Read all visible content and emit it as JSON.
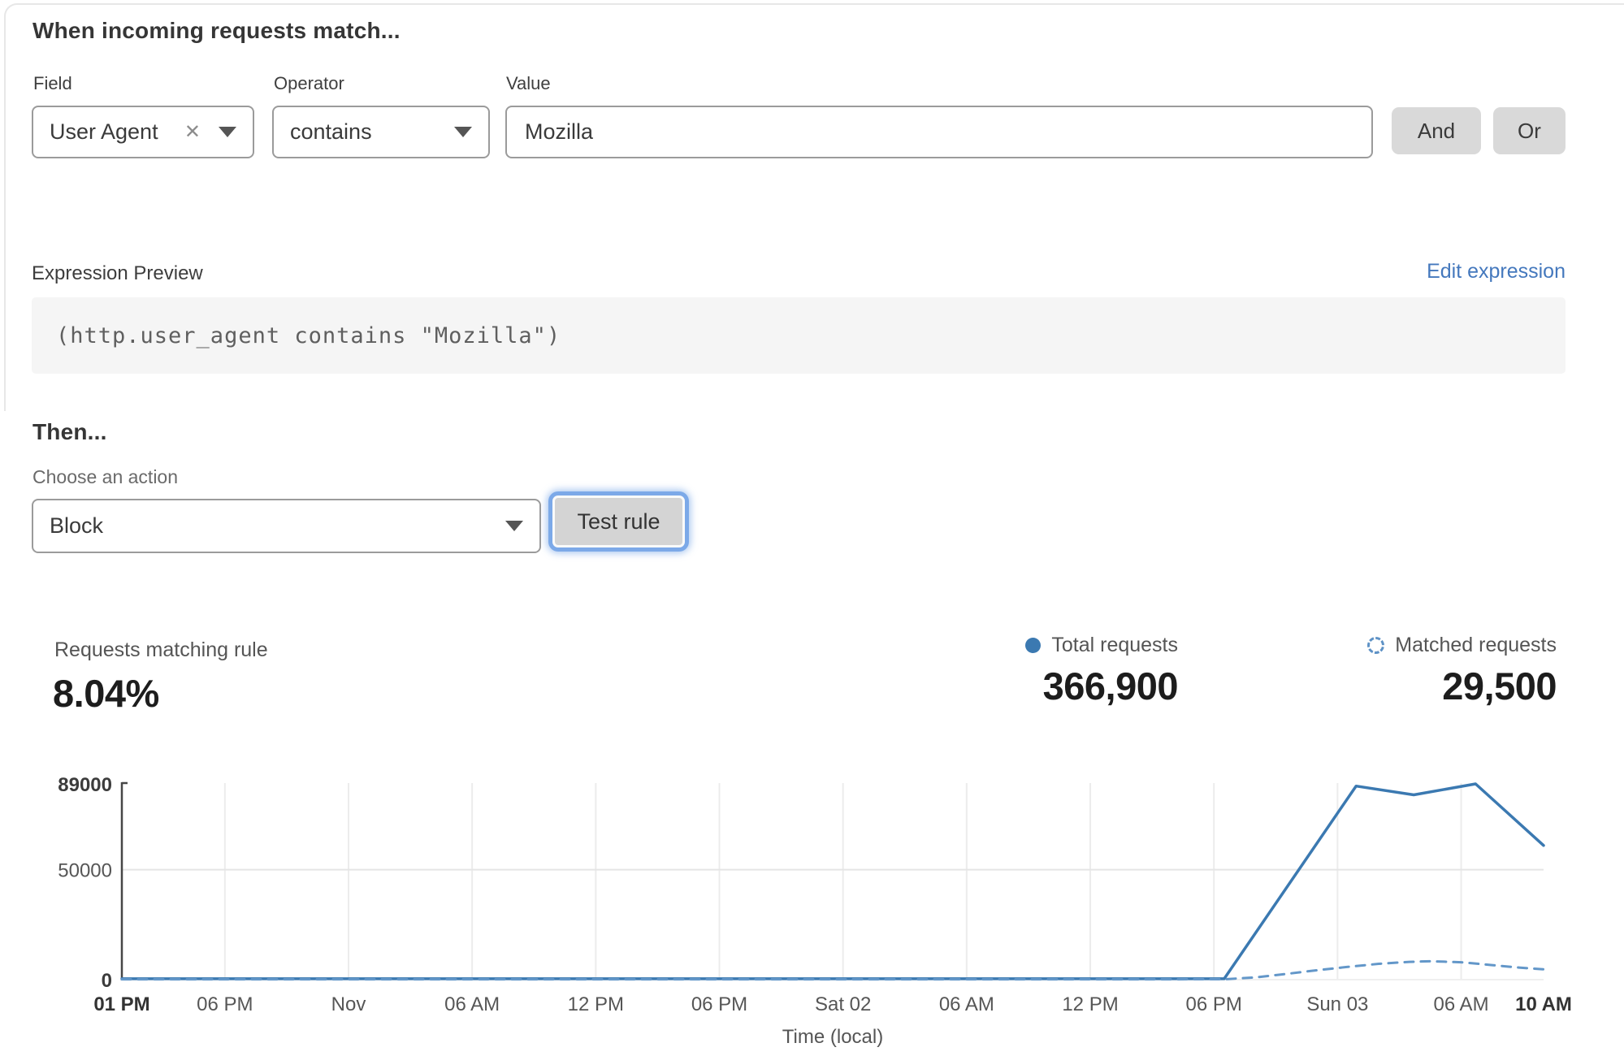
{
  "match": {
    "heading": "When incoming requests match...",
    "field_label": "Field",
    "operator_label": "Operator",
    "value_label": "Value",
    "field_value": "User Agent",
    "operator_value": "contains",
    "value_value": "Mozilla",
    "and_label": "And",
    "or_label": "Or"
  },
  "expression": {
    "label": "Expression Preview",
    "edit_link": "Edit expression",
    "code": "(http.user_agent contains \"Mozilla\")"
  },
  "then": {
    "heading": "Then...",
    "action_label": "Choose an action",
    "action_value": "Block",
    "test_button": "Test rule"
  },
  "stats": {
    "matching_label": "Requests matching rule",
    "matching_value": "8.04%",
    "total_label": "Total requests",
    "total_value": "366,900",
    "matched_label": "Matched requests",
    "matched_value": "29,500"
  },
  "colors": {
    "total_line": "#3b79b1",
    "matched_line": "#6397c9",
    "link_blue": "#4478bd",
    "focus_ring": "#7ca9e8",
    "button_gray": "#d9d9d9",
    "grid_gray": "#ececec"
  },
  "chart_data": {
    "type": "line",
    "title": "",
    "xlabel": "Time (local)",
    "ylabel": "",
    "ylim": [
      0,
      89000
    ],
    "grid": true,
    "legend_position": "top-right",
    "y_ticks": [
      {
        "value": 0,
        "label": "0",
        "bold": true
      },
      {
        "value": 50000,
        "label": "50000",
        "bold": false
      },
      {
        "value": 89000,
        "label": "89000",
        "bold": true
      }
    ],
    "x_span_hours": 69,
    "x_ticks": [
      {
        "h": 0,
        "label": "01 PM",
        "bold": true
      },
      {
        "h": 5,
        "label": "06 PM",
        "bold": false
      },
      {
        "h": 11,
        "label": "Nov",
        "bold": false
      },
      {
        "h": 17,
        "label": "06 AM",
        "bold": false
      },
      {
        "h": 23,
        "label": "12 PM",
        "bold": false
      },
      {
        "h": 29,
        "label": "06 PM",
        "bold": false
      },
      {
        "h": 35,
        "label": "Sat 02",
        "bold": false
      },
      {
        "h": 41,
        "label": "06 AM",
        "bold": false
      },
      {
        "h": 47,
        "label": "12 PM",
        "bold": false
      },
      {
        "h": 53,
        "label": "06 PM",
        "bold": false
      },
      {
        "h": 59,
        "label": "Sun 03",
        "bold": false
      },
      {
        "h": 65,
        "label": "06 AM",
        "bold": false
      },
      {
        "h": 69,
        "label": "10 AM",
        "bold": true
      }
    ],
    "series": [
      {
        "name": "Total requests",
        "style": "solid",
        "color": "#3b79b1",
        "points": [
          [
            0,
            400
          ],
          [
            10,
            400
          ],
          [
            20,
            400
          ],
          [
            30,
            400
          ],
          [
            40,
            400
          ],
          [
            50,
            400
          ],
          [
            53.5,
            400
          ],
          [
            59.9,
            88000
          ],
          [
            62.7,
            84000
          ],
          [
            65.7,
            89000
          ],
          [
            69,
            61000
          ]
        ]
      },
      {
        "name": "Matched requests",
        "style": "dashed",
        "color": "#6397c9",
        "points": [
          [
            0,
            150
          ],
          [
            10,
            150
          ],
          [
            20,
            150
          ],
          [
            30,
            150
          ],
          [
            40,
            150
          ],
          [
            50,
            150
          ],
          [
            53.5,
            200
          ],
          [
            55,
            1000
          ],
          [
            56.5,
            2600
          ],
          [
            58,
            4300
          ],
          [
            59.5,
            5800
          ],
          [
            61,
            7200
          ],
          [
            62.5,
            8100
          ],
          [
            63.5,
            8400
          ],
          [
            65,
            7900
          ],
          [
            66.5,
            6600
          ],
          [
            67.8,
            5500
          ],
          [
            69,
            4700
          ]
        ]
      }
    ]
  }
}
